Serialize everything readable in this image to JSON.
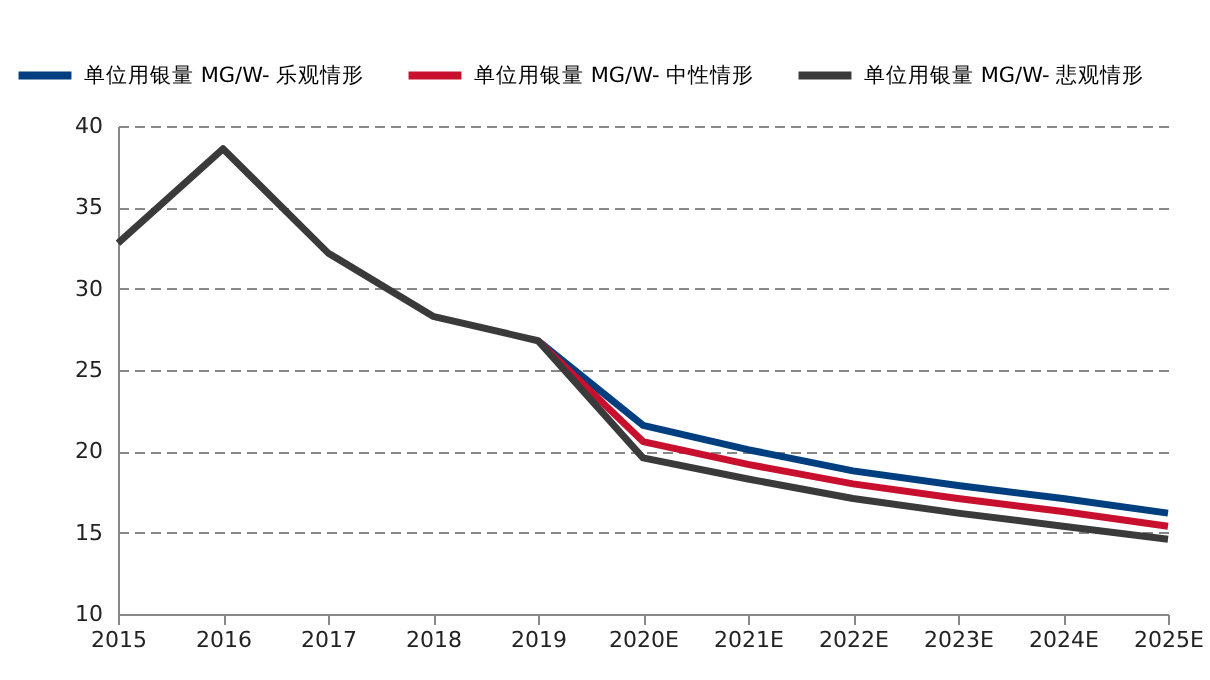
{
  "chart_data": {
    "type": "line",
    "categories": [
      "2015",
      "2016",
      "2017",
      "2018",
      "2019",
      "2020E",
      "2021E",
      "2022E",
      "2023E",
      "2024E",
      "2025E"
    ],
    "series": [
      {
        "name": "单位用银量  MG/W- 乐观情形",
        "color": "#003f7f",
        "values": [
          null,
          null,
          null,
          null,
          26.8,
          21.6,
          20.1,
          18.8,
          17.9,
          17.1,
          16.2
        ]
      },
      {
        "name": "单位用银量  MG/W- 中性情形",
        "color": "#c8102e",
        "values": [
          null,
          null,
          null,
          null,
          26.8,
          20.6,
          19.2,
          18.0,
          17.1,
          16.3,
          15.4
        ]
      },
      {
        "name": "单位用银量  MG/W- 悲观情形",
        "color": "#3a3a3a",
        "values": [
          32.8,
          38.6,
          32.2,
          28.3,
          26.8,
          19.6,
          18.3,
          17.1,
          16.2,
          15.4,
          14.6
        ]
      }
    ],
    "ylim": [
      10,
      40
    ],
    "yticks": [
      10,
      15,
      20,
      25,
      30,
      35,
      40
    ],
    "grid": "y",
    "legend": "top",
    "line_style": "solid",
    "marker": "none"
  }
}
